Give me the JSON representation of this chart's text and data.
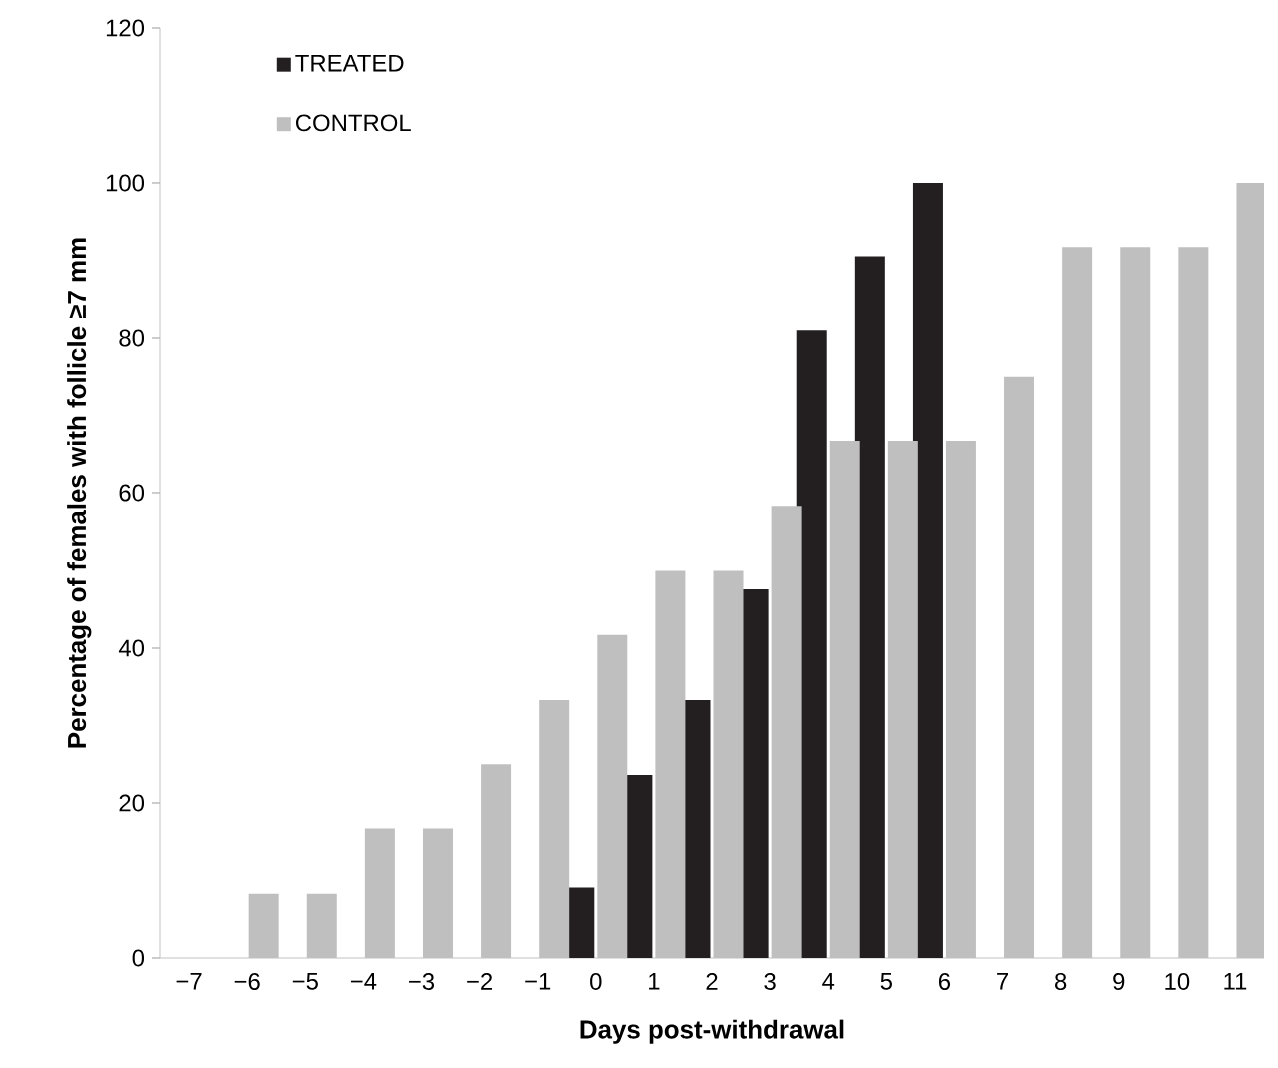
{
  "chart_data": {
    "type": "bar",
    "xlabel": "Days post-withdrawal",
    "ylabel": "Percentage of females with follicle ≥7 mm",
    "categories": [
      "−7",
      "−6",
      "−5",
      "−4",
      "−3",
      "−2",
      "−1",
      "0",
      "1",
      "2",
      "3",
      "4",
      "5",
      "6",
      "7",
      "8",
      "9",
      "10",
      "11"
    ],
    "series": [
      {
        "name": "TREATED",
        "color": "#231f20",
        "values": [
          null,
          null,
          null,
          null,
          null,
          null,
          null,
          9.1,
          23.6,
          33.3,
          47.6,
          81,
          90.5,
          100,
          null,
          null,
          null,
          null,
          null
        ]
      },
      {
        "name": "CONTROL",
        "color": "#bfbfbf",
        "values": [
          null,
          8.3,
          8.3,
          16.7,
          16.7,
          25,
          33.3,
          41.7,
          50,
          50,
          58.3,
          66.7,
          66.7,
          66.7,
          75,
          91.7,
          91.7,
          91.7,
          100
        ]
      }
    ],
    "ylim": [
      0,
      120
    ],
    "yticks": [
      0,
      20,
      40,
      60,
      80,
      100,
      120
    ],
    "grid": false,
    "legend": "top left"
  }
}
